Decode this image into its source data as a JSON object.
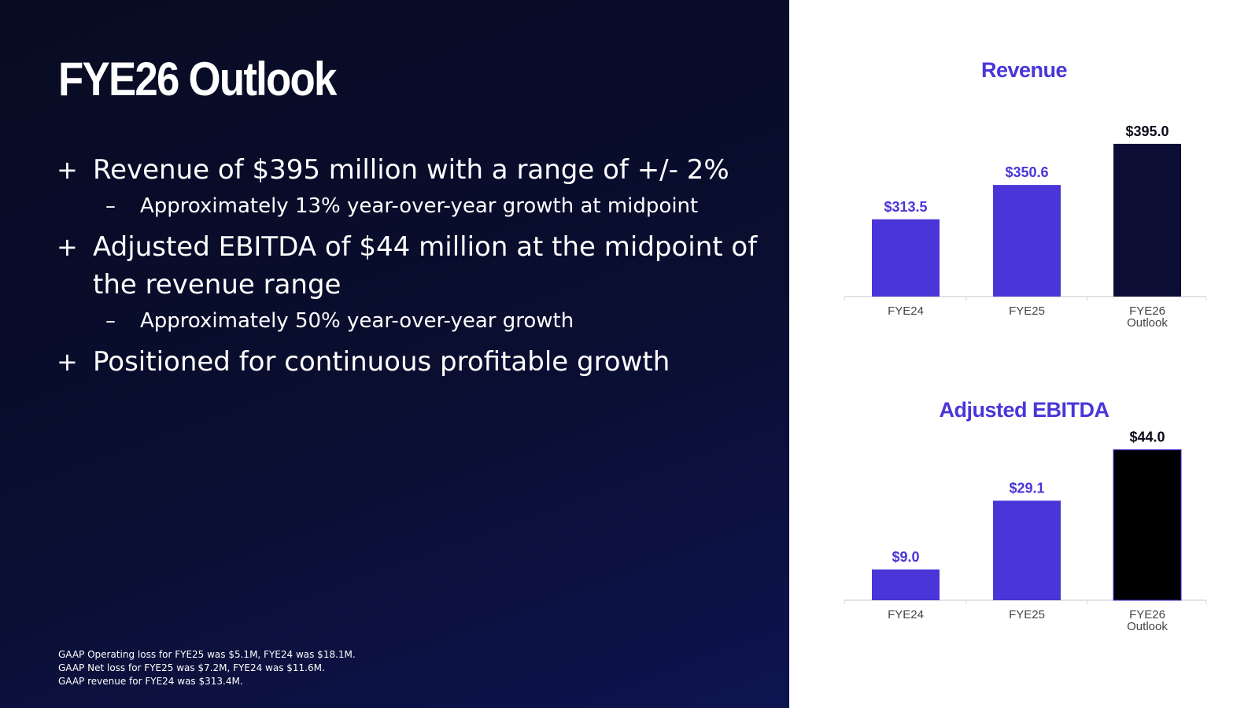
{
  "slide": {
    "title": "FYE26 Outlook",
    "bullets": [
      {
        "marker": "+",
        "text": "Revenue of $395 million with a range of +/- 2%",
        "sub": {
          "marker": "–",
          "text": "Approximately 13% year-over-year growth at midpoint"
        }
      },
      {
        "marker": "+",
        "text": "Adjusted EBITDA of $44 million at the midpoint of the revenue range",
        "sub": {
          "marker": "–",
          "text": "Approximately 50% year-over-year growth"
        }
      },
      {
        "marker": "+",
        "text": "Positioned for continuous profitable growth"
      }
    ],
    "footnotes": [
      "GAAP Operating loss for FYE25 was $5.1M, FYE24 was $18.1M.",
      "GAAP Net loss for FYE25 was $7.2M,  FYE24 was $11.6M.",
      "GAAP revenue for FYE24 was $313.4M."
    ]
  },
  "colors": {
    "accent": "#4a35d8",
    "revenue_outlook_bar": "#0b0d35",
    "ebitda_outlook_bar": "#000000",
    "panel_bg": "#070b22"
  },
  "chart_data": [
    {
      "type": "bar",
      "title": "Revenue",
      "categories": [
        "FYE24",
        "FYE25",
        "FYE26\nOutlook"
      ],
      "values": [
        313.5,
        350.6,
        395.0
      ],
      "value_labels": [
        "$313.5",
        "$350.6",
        "$395.0"
      ],
      "ylim": [
        230,
        400
      ],
      "bar_colors": [
        "#4a35d8",
        "#4a35d8",
        "#0b0d35"
      ],
      "label_colors": [
        "#4a35d8",
        "#4a35d8",
        "#0a0a1a"
      ],
      "grid": false,
      "legend": "none"
    },
    {
      "type": "bar",
      "title": "Adjusted EBITDA",
      "categories": [
        "FYE24",
        "FYE25",
        "FYE26\nOutlook"
      ],
      "values": [
        9.0,
        29.1,
        44.0
      ],
      "value_labels": [
        "$9.0",
        "$29.1",
        "$44.0"
      ],
      "ylim": [
        0,
        46
      ],
      "bar_colors": [
        "#4a35d8",
        "#4a35d8",
        "#000000"
      ],
      "label_colors": [
        "#4a35d8",
        "#4a35d8",
        "#0a0a1a"
      ],
      "grid": false,
      "legend": "none"
    }
  ]
}
